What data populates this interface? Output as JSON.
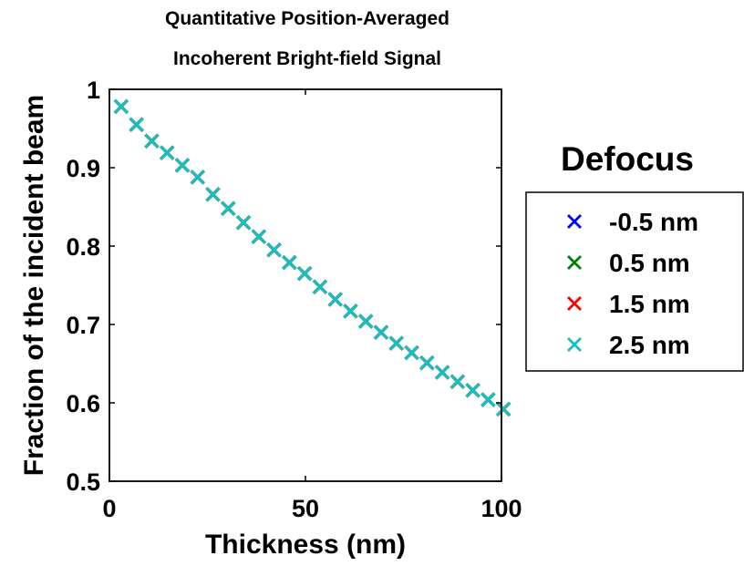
{
  "chart_data": {
    "type": "scatter",
    "title_lines": [
      "Quantitative Position-Averaged",
      "Incoherent Bright-field Signal"
    ],
    "xlabel": "Thickness (nm)",
    "ylabel": "Fraction of the incident beam",
    "xlim": [
      0,
      100
    ],
    "ylim": [
      0.5,
      1
    ],
    "xticks": [
      0,
      50,
      100
    ],
    "yticks": [
      0.5,
      0.6,
      0.7,
      0.8,
      0.9,
      1
    ],
    "ytick_labels": [
      "0.5",
      "0.6",
      "0.7",
      "0.8",
      "0.9",
      "1"
    ],
    "grid": false,
    "legend_title": "Defocus",
    "legend_position": "right, outside plot",
    "marker": "x",
    "x": [
      3,
      6.9,
      10.8,
      14.7,
      18.6,
      22.5,
      26.4,
      30.3,
      34.2,
      38.1,
      42,
      45.9,
      49.8,
      53.7,
      57.6,
      61.5,
      65.4,
      69.3,
      73.2,
      77.1,
      81,
      84.9,
      88.8,
      92.7,
      96.6,
      100.5
    ],
    "series": [
      {
        "name": "-0.5 nm",
        "color": "#0000ff",
        "values": [
          0.978,
          0.955,
          0.934,
          0.919,
          0.903,
          0.888,
          0.866,
          0.848,
          0.83,
          0.812,
          0.795,
          0.779,
          0.765,
          0.748,
          0.732,
          0.717,
          0.704,
          0.69,
          0.676,
          0.664,
          0.651,
          0.639,
          0.627,
          0.616,
          0.604,
          0.592
        ]
      },
      {
        "name": "0.5 nm",
        "color": "#008000",
        "values": [
          0.978,
          0.955,
          0.934,
          0.919,
          0.903,
          0.888,
          0.866,
          0.848,
          0.83,
          0.812,
          0.795,
          0.779,
          0.765,
          0.748,
          0.732,
          0.717,
          0.704,
          0.69,
          0.676,
          0.664,
          0.651,
          0.639,
          0.627,
          0.616,
          0.604,
          0.592
        ]
      },
      {
        "name": "1.5 nm",
        "color": "#ff0000",
        "values": [
          0.978,
          0.955,
          0.934,
          0.919,
          0.903,
          0.888,
          0.866,
          0.848,
          0.83,
          0.812,
          0.795,
          0.779,
          0.765,
          0.748,
          0.732,
          0.717,
          0.704,
          0.69,
          0.676,
          0.664,
          0.651,
          0.639,
          0.627,
          0.616,
          0.604,
          0.592
        ]
      },
      {
        "name": "2.5 nm",
        "color": "#17bfbf",
        "values": [
          0.978,
          0.955,
          0.934,
          0.919,
          0.903,
          0.888,
          0.866,
          0.848,
          0.83,
          0.812,
          0.795,
          0.779,
          0.765,
          0.748,
          0.732,
          0.717,
          0.704,
          0.69,
          0.676,
          0.664,
          0.651,
          0.639,
          0.627,
          0.616,
          0.604,
          0.592
        ]
      }
    ]
  }
}
